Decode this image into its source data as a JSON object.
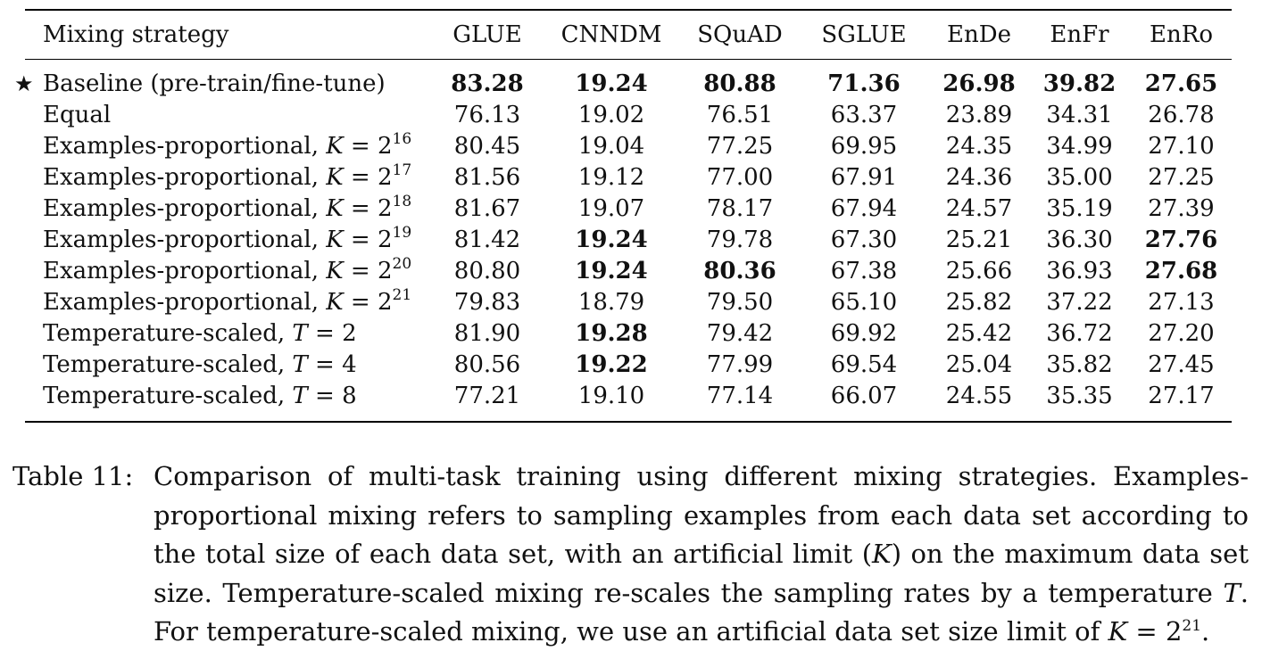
{
  "table": {
    "columns": [
      "Mixing strategy",
      "GLUE",
      "CNNDM",
      "SQuAD",
      "SGLUE",
      "EnDe",
      "EnFr",
      "EnRo"
    ],
    "rows": [
      {
        "marker": "★",
        "label": "Baseline (pre-train/fine-tune)",
        "label_var": "",
        "label_op": "",
        "label_val": "",
        "label_sup": "",
        "values": [
          "83.28",
          "19.24",
          "80.88",
          "71.36",
          "26.98",
          "39.82",
          "27.65"
        ],
        "bold": [
          true,
          true,
          true,
          true,
          true,
          true,
          true
        ]
      },
      {
        "marker": "",
        "label": "Equal",
        "label_var": "",
        "label_op": "",
        "label_val": "",
        "label_sup": "",
        "values": [
          "76.13",
          "19.02",
          "76.51",
          "63.37",
          "23.89",
          "34.31",
          "26.78"
        ],
        "bold": [
          false,
          false,
          false,
          false,
          false,
          false,
          false
        ]
      },
      {
        "marker": "",
        "label": "Examples-proportional, ",
        "label_var": "K",
        "label_op": " = ",
        "label_val": "2",
        "label_sup": "16",
        "values": [
          "80.45",
          "19.04",
          "77.25",
          "69.95",
          "24.35",
          "34.99",
          "27.10"
        ],
        "bold": [
          false,
          false,
          false,
          false,
          false,
          false,
          false
        ]
      },
      {
        "marker": "",
        "label": "Examples-proportional, ",
        "label_var": "K",
        "label_op": " = ",
        "label_val": "2",
        "label_sup": "17",
        "values": [
          "81.56",
          "19.12",
          "77.00",
          "67.91",
          "24.36",
          "35.00",
          "27.25"
        ],
        "bold": [
          false,
          false,
          false,
          false,
          false,
          false,
          false
        ]
      },
      {
        "marker": "",
        "label": "Examples-proportional, ",
        "label_var": "K",
        "label_op": " = ",
        "label_val": "2",
        "label_sup": "18",
        "values": [
          "81.67",
          "19.07",
          "78.17",
          "67.94",
          "24.57",
          "35.19",
          "27.39"
        ],
        "bold": [
          false,
          false,
          false,
          false,
          false,
          false,
          false
        ]
      },
      {
        "marker": "",
        "label": "Examples-proportional, ",
        "label_var": "K",
        "label_op": " = ",
        "label_val": "2",
        "label_sup": "19",
        "values": [
          "81.42",
          "19.24",
          "79.78",
          "67.30",
          "25.21",
          "36.30",
          "27.76"
        ],
        "bold": [
          false,
          true,
          false,
          false,
          false,
          false,
          true
        ]
      },
      {
        "marker": "",
        "label": "Examples-proportional, ",
        "label_var": "K",
        "label_op": " = ",
        "label_val": "2",
        "label_sup": "20",
        "values": [
          "80.80",
          "19.24",
          "80.36",
          "67.38",
          "25.66",
          "36.93",
          "27.68"
        ],
        "bold": [
          false,
          true,
          true,
          false,
          false,
          false,
          true
        ]
      },
      {
        "marker": "",
        "label": "Examples-proportional, ",
        "label_var": "K",
        "label_op": " = ",
        "label_val": "2",
        "label_sup": "21",
        "values": [
          "79.83",
          "18.79",
          "79.50",
          "65.10",
          "25.82",
          "37.22",
          "27.13"
        ],
        "bold": [
          false,
          false,
          false,
          false,
          false,
          false,
          false
        ]
      },
      {
        "marker": "",
        "label": "Temperature-scaled, ",
        "label_var": "T",
        "label_op": " = ",
        "label_val": "2",
        "label_sup": "",
        "values": [
          "81.90",
          "19.28",
          "79.42",
          "69.92",
          "25.42",
          "36.72",
          "27.20"
        ],
        "bold": [
          false,
          true,
          false,
          false,
          false,
          false,
          false
        ]
      },
      {
        "marker": "",
        "label": "Temperature-scaled, ",
        "label_var": "T",
        "label_op": " = ",
        "label_val": "4",
        "label_sup": "",
        "values": [
          "80.56",
          "19.22",
          "77.99",
          "69.54",
          "25.04",
          "35.82",
          "27.45"
        ],
        "bold": [
          false,
          true,
          false,
          false,
          false,
          false,
          false
        ]
      },
      {
        "marker": "",
        "label": "Temperature-scaled, ",
        "label_var": "T",
        "label_op": " = ",
        "label_val": "8",
        "label_sup": "",
        "values": [
          "77.21",
          "19.10",
          "77.14",
          "66.07",
          "24.55",
          "35.35",
          "27.17"
        ],
        "bold": [
          false,
          false,
          false,
          false,
          false,
          false,
          false
        ]
      }
    ]
  },
  "caption": {
    "label": "Table 11:",
    "segments": [
      {
        "t": "Comparison of multi-task training using different mixing strategies. Examples-proportional mixing refers to sampling examples from each data set according to the total size of each data set, with an artificial limit (",
        "i": false
      },
      {
        "t": "K",
        "i": true
      },
      {
        "t": ") on the maximum data set size. Temperature-scaled mixing re-scales the sampling rates by a temperature ",
        "i": false
      },
      {
        "t": "T",
        "i": true
      },
      {
        "t": ". For temperature-scaled mixing, we use an artificial data set size limit of ",
        "i": false
      },
      {
        "t": "K",
        "i": true
      },
      {
        "t": " = 2",
        "i": false
      },
      {
        "t": "21",
        "sup": true
      },
      {
        "t": ".",
        "i": false
      }
    ]
  }
}
